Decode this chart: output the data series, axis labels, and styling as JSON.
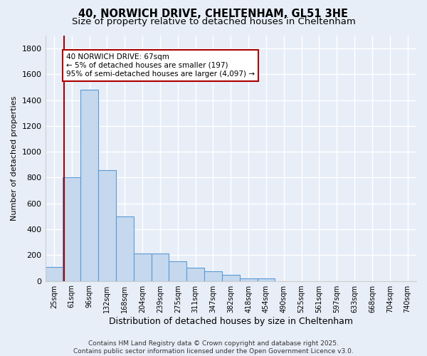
{
  "title_line1": "40, NORWICH DRIVE, CHELTENHAM, GL51 3HE",
  "title_line2": "Size of property relative to detached houses in Cheltenham",
  "xlabel": "Distribution of detached houses by size in Cheltenham",
  "ylabel": "Number of detached properties",
  "categories": [
    "25sqm",
    "61sqm",
    "96sqm",
    "132sqm",
    "168sqm",
    "204sqm",
    "239sqm",
    "275sqm",
    "311sqm",
    "347sqm",
    "382sqm",
    "418sqm",
    "454sqm",
    "490sqm",
    "525sqm",
    "561sqm",
    "597sqm",
    "633sqm",
    "668sqm",
    "704sqm",
    "740sqm"
  ],
  "bar_values": [
    110,
    800,
    1480,
    860,
    500,
    210,
    210,
    150,
    100,
    75,
    45,
    20,
    20,
    0,
    0,
    0,
    0,
    0,
    0,
    0,
    0
  ],
  "bar_color": "#c5d8ee",
  "bar_edge_color": "#5b9bd5",
  "annotation_text": "40 NORWICH DRIVE: 67sqm\n← 5% of detached houses are smaller (197)\n95% of semi-detached houses are larger (4,097) →",
  "annotation_box_color": "#ffffff",
  "annotation_box_edge_color": "#aa0000",
  "vline_color": "#aa0000",
  "background_color": "#e8eef8",
  "plot_bg_color": "#e8eef8",
  "footer_text": "Contains HM Land Registry data © Crown copyright and database right 2025.\nContains public sector information licensed under the Open Government Licence v3.0.",
  "ylim": [
    0,
    1900
  ],
  "yticks": [
    0,
    200,
    400,
    600,
    800,
    1000,
    1200,
    1400,
    1600,
    1800
  ],
  "grid_color": "#ffffff",
  "title_fontsize": 10.5,
  "subtitle_fontsize": 9.5,
  "vline_x": 0.575
}
